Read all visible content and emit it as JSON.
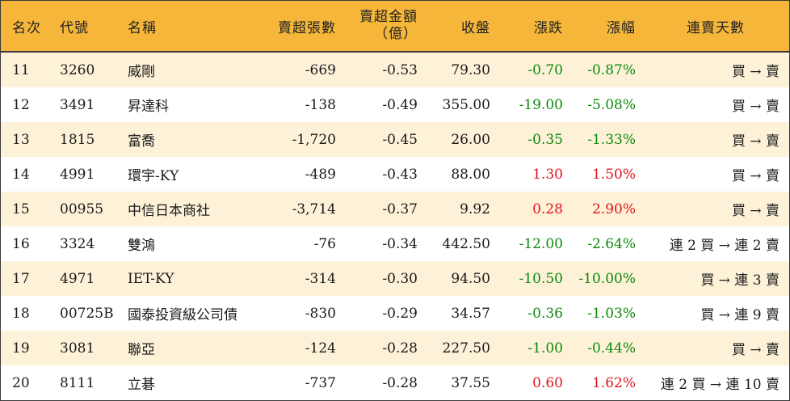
{
  "headers": {
    "rank": "名次",
    "code": "代號",
    "name": "名稱",
    "net_lots": "賣超張數",
    "net_amount_line1": "賣超金額",
    "net_amount_line2": "（億）",
    "close": "收盤",
    "change": "漲跌",
    "pct": "漲幅",
    "streak": "連賣天數"
  },
  "rows": [
    {
      "rank": "11",
      "code": "3260",
      "name": "威剛",
      "net_lots": "-669",
      "net_amount": "-0.53",
      "close": "79.30",
      "change": "-0.70",
      "pct": "-0.87%",
      "streak": "買 → 賣",
      "direction": "down"
    },
    {
      "rank": "12",
      "code": "3491",
      "name": "昇達科",
      "net_lots": "-138",
      "net_amount": "-0.49",
      "close": "355.00",
      "change": "-19.00",
      "pct": "-5.08%",
      "streak": "買 → 賣",
      "direction": "down"
    },
    {
      "rank": "13",
      "code": "1815",
      "name": "富喬",
      "net_lots": "-1,720",
      "net_amount": "-0.45",
      "close": "26.00",
      "change": "-0.35",
      "pct": "-1.33%",
      "streak": "買 → 賣",
      "direction": "down"
    },
    {
      "rank": "14",
      "code": "4991",
      "name": "環宇-KY",
      "net_lots": "-489",
      "net_amount": "-0.43",
      "close": "88.00",
      "change": "1.30",
      "pct": "1.50%",
      "streak": "買 → 賣",
      "direction": "up"
    },
    {
      "rank": "15",
      "code": "00955",
      "name": "中信日本商社",
      "net_lots": "-3,714",
      "net_amount": "-0.37",
      "close": "9.92",
      "change": "0.28",
      "pct": "2.90%",
      "streak": "買 → 賣",
      "direction": "up"
    },
    {
      "rank": "16",
      "code": "3324",
      "name": "雙鴻",
      "net_lots": "-76",
      "net_amount": "-0.34",
      "close": "442.50",
      "change": "-12.00",
      "pct": "-2.64%",
      "streak": "連 2 買 → 連 2 賣",
      "direction": "down"
    },
    {
      "rank": "17",
      "code": "4971",
      "name": "IET-KY",
      "net_lots": "-314",
      "net_amount": "-0.30",
      "close": "94.50",
      "change": "-10.50",
      "pct": "-10.00%",
      "streak": "買 → 連 3 賣",
      "direction": "down"
    },
    {
      "rank": "18",
      "code": "00725B",
      "name": "國泰投資級公司債",
      "net_lots": "-830",
      "net_amount": "-0.29",
      "close": "34.57",
      "change": "-0.36",
      "pct": "-1.03%",
      "streak": "買 → 連 9 賣",
      "direction": "down"
    },
    {
      "rank": "19",
      "code": "3081",
      "name": "聯亞",
      "net_lots": "-124",
      "net_amount": "-0.28",
      "close": "227.50",
      "change": "-1.00",
      "pct": "-0.44%",
      "streak": "買 → 賣",
      "direction": "down"
    },
    {
      "rank": "20",
      "code": "8111",
      "name": "立碁",
      "net_lots": "-737",
      "net_amount": "-0.28",
      "close": "37.55",
      "change": "0.60",
      "pct": "1.62%",
      "streak": "連 2 買 → 連 10 賣",
      "direction": "up"
    }
  ],
  "colors": {
    "header_bg": "#f5b63a",
    "stripe_bg": "#fdf2d8",
    "up": "#e0141b",
    "down": "#0b8a0b"
  }
}
